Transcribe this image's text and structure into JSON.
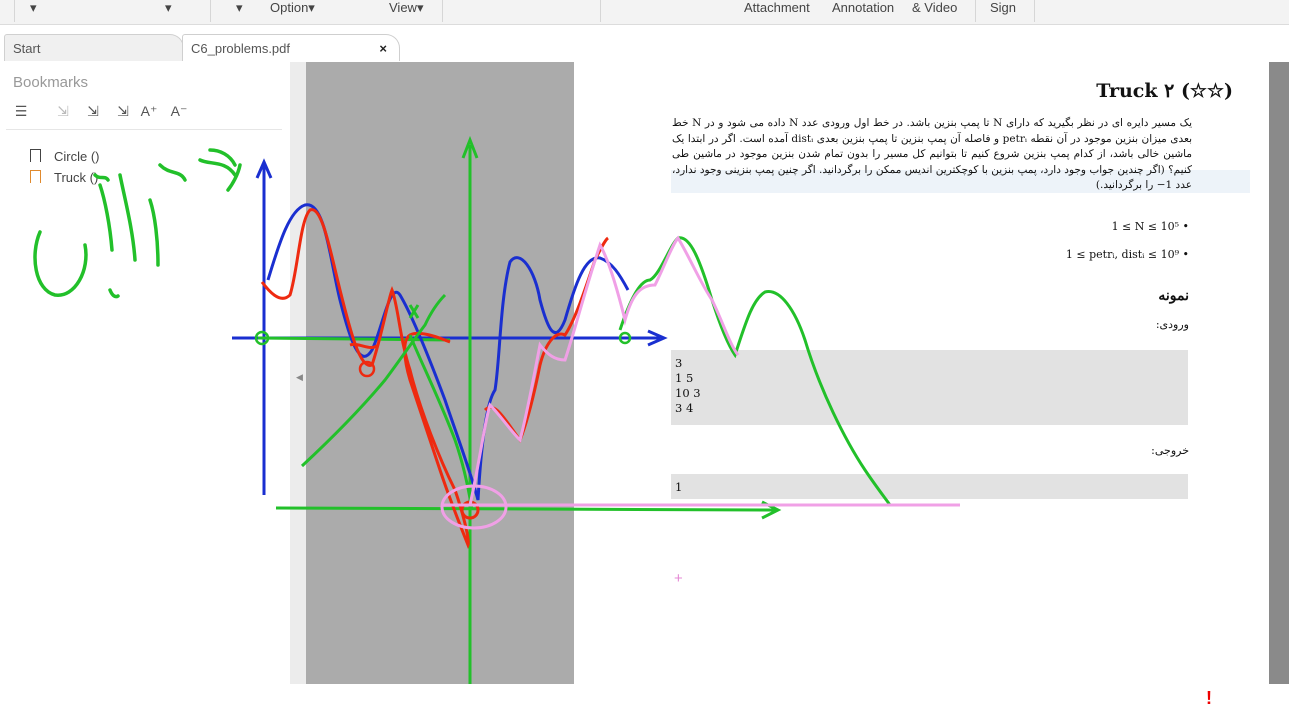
{
  "toolbar": {
    "dropdown1": "▾",
    "dropdown2": "▾",
    "dropdown3": "▾",
    "option_label": "Option▾",
    "view_label": "View▾",
    "attachment_label": "Attachment",
    "annotation_label": "Annotation",
    "video_label": "& Video",
    "sign_label": "Sign"
  },
  "tabs": [
    {
      "label": "Start"
    },
    {
      "label": "C6_problems.pdf",
      "close": "×"
    }
  ],
  "sidebar": {
    "title": "Bookmarks",
    "tools": [
      "☰",
      "⇲",
      "⇲",
      "⇲",
      "A⁺",
      "A⁻"
    ],
    "items": [
      {
        "label": "Circle ()"
      },
      {
        "label": "Truck ()"
      }
    ]
  },
  "pdf": {
    "title": "(☆☆) Truck ۲",
    "paragraph": "یک مسیر دایره ای در نظر بگیرید که دارای N تا پمپ بنزین باشد. در خط اول ورودی عدد N داده می شود و در N خط بعدی میزان بنزین موجود در آن نقطه petrᵢ و فاصله آن پمپ بنزین تا پمپ بنزین بعدی distᵢ آمده است. اگر در ابتدا یک ماشین خالی باشد، از کدام پمپ بنزین شروع کنیم تا بتوانیم کل مسیر را بدون تمام شدن بنزین موجود در ماشین طی کنیم؟ (اگر چندین جواب وجود دارد، پمپ بنزین با کوچکترین اندیس ممکن را برگردانید. اگر چنین پمپ بنزینی وجود ندارد، عدد 1− را برگردانید.)",
    "bullet1": "1 ≤ N ≤ 10⁵ •",
    "bullet2": "1 ≤ petrᵢ, distᵢ ≤ 10⁹ •",
    "sample_heading": "نمونه",
    "input_label": "ورودی:",
    "input_block": "3\n1 5\n10 3\n3 4",
    "output_label": "خروجی:",
    "output_block": "1"
  },
  "colors": {
    "ink_green": "#22c02a",
    "ink_blue": "#1a2fd0",
    "ink_red": "#ee2a10",
    "ink_pink": "#f0a0e6",
    "gray_area": "#ababab"
  },
  "footer": {
    "excl": "!"
  }
}
